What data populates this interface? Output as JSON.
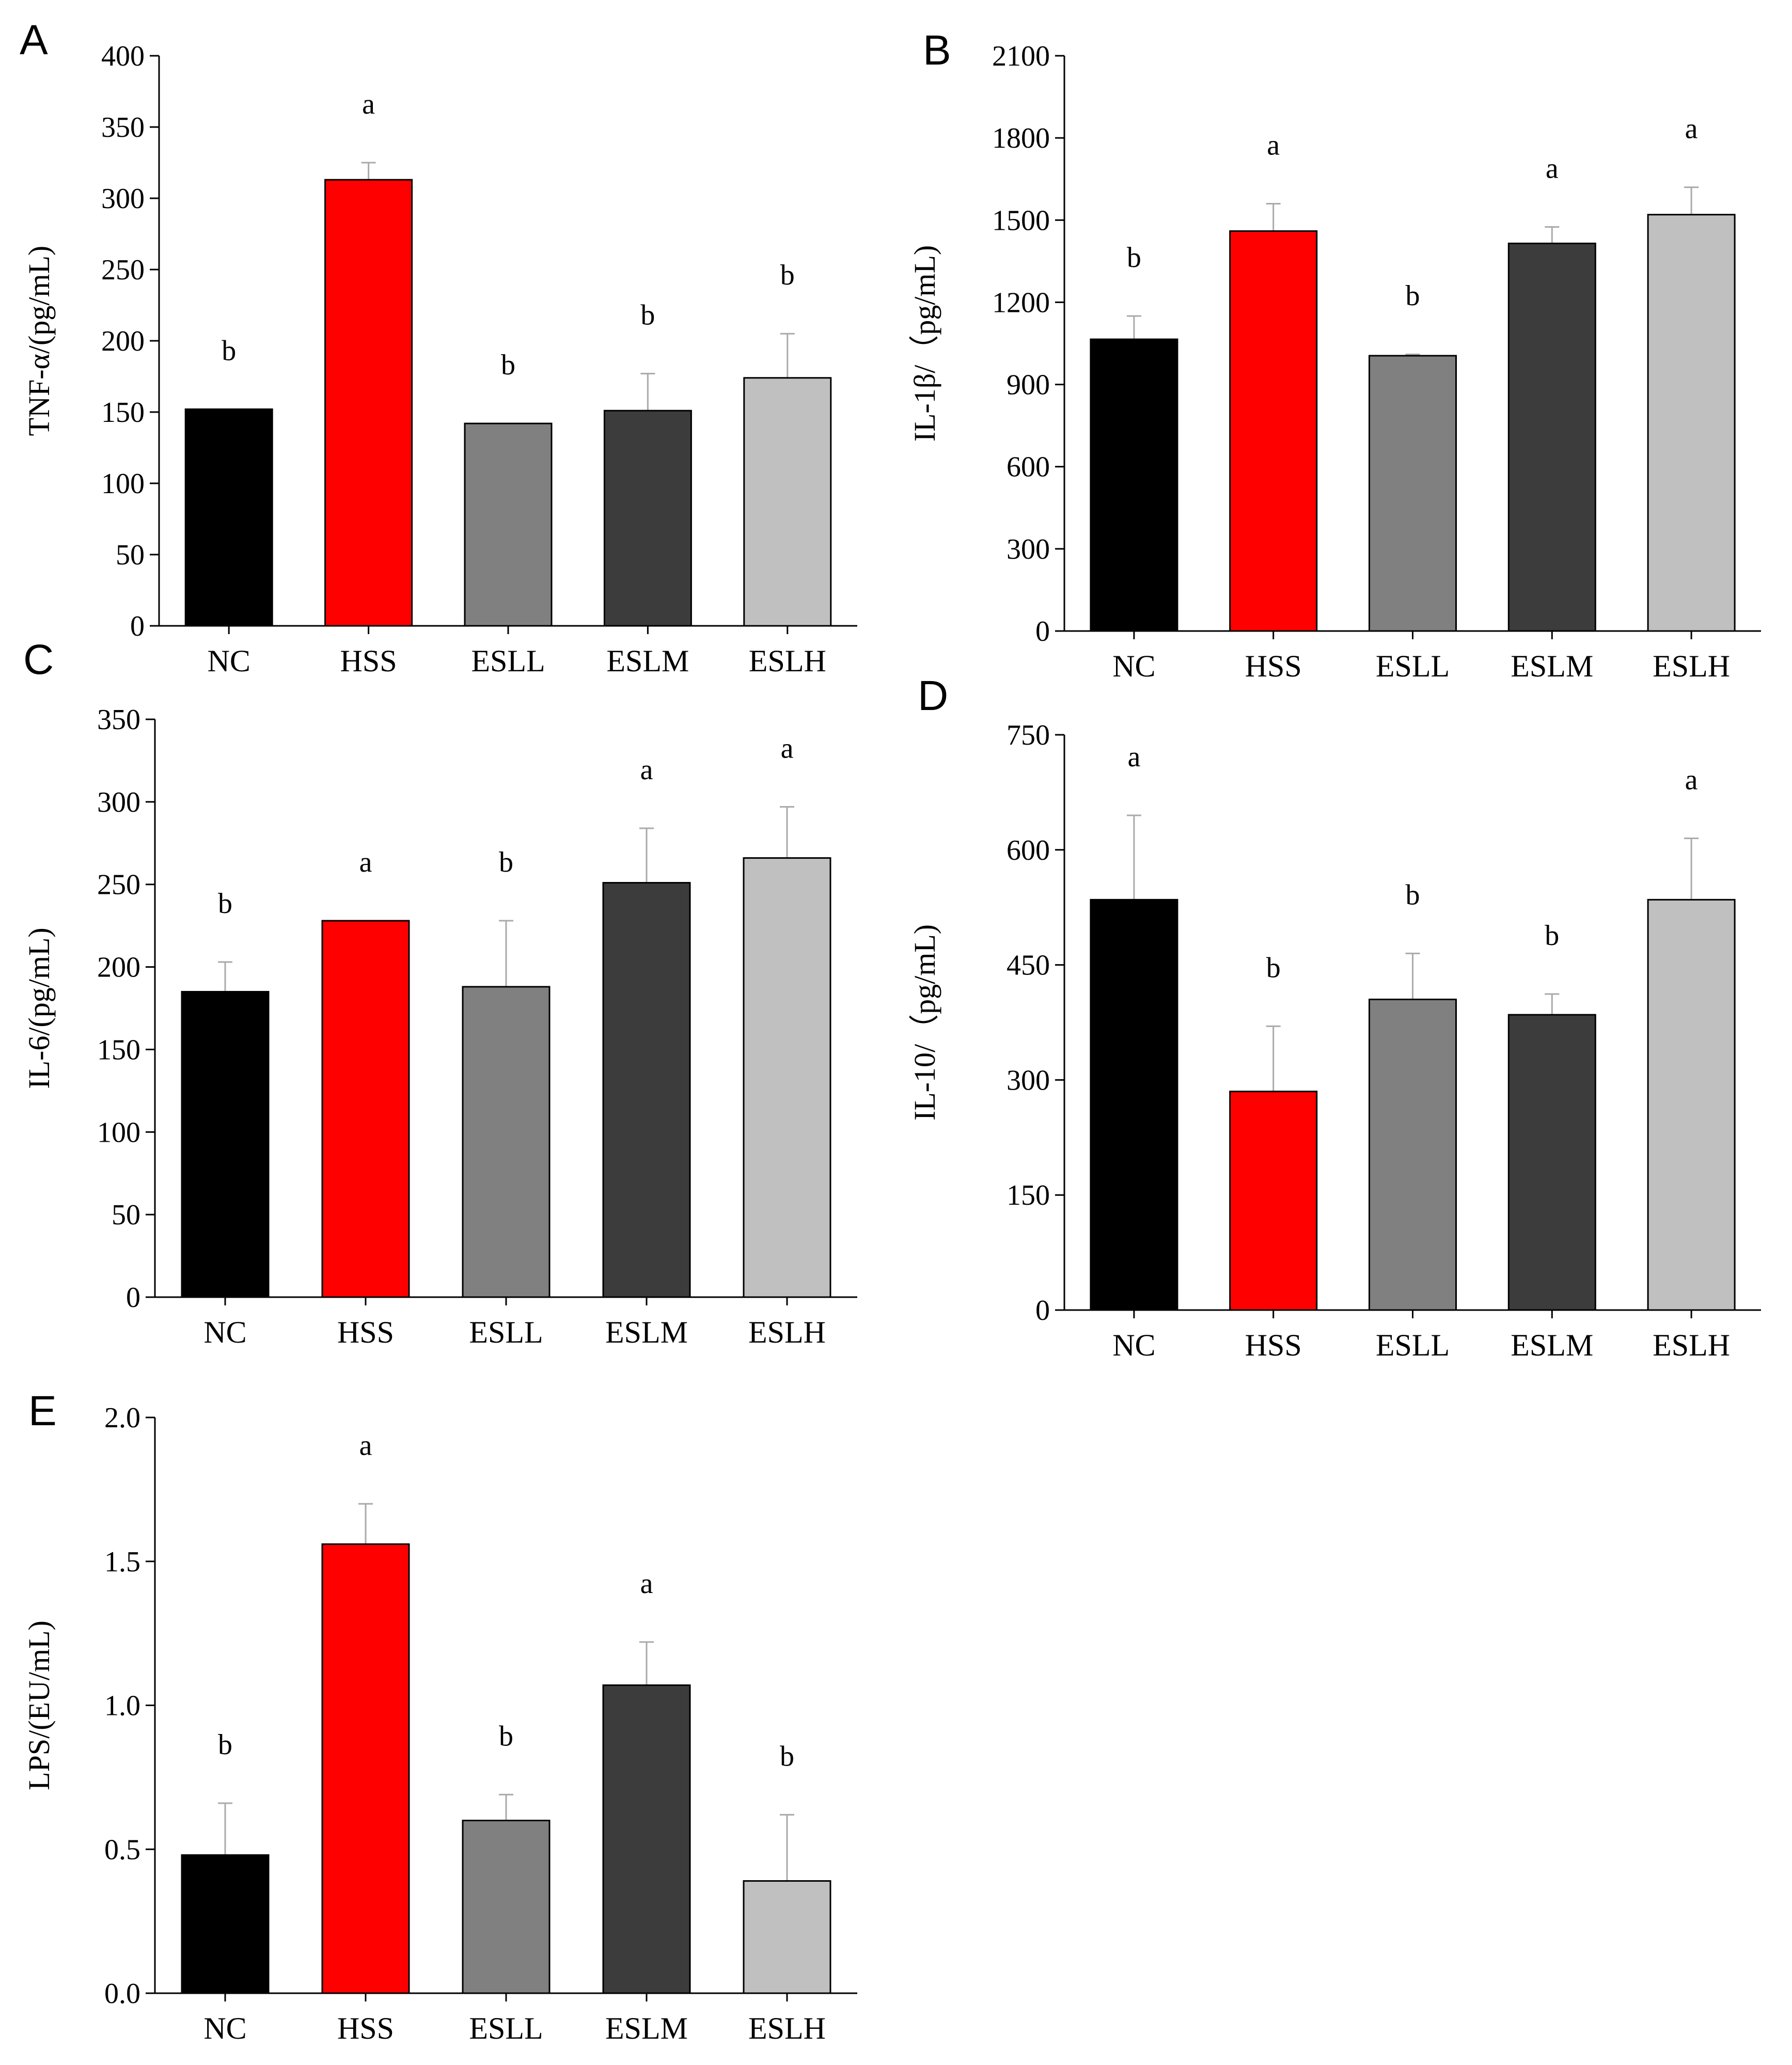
{
  "colors": {
    "NC": "#000000",
    "HSS": "#ff0000",
    "ESLL": "#808080",
    "ESLM": "#3c3c3c",
    "ESLH": "#c0c0c0",
    "error_bar": "#aaaaaa"
  },
  "chart_data": [
    {
      "type": "bar",
      "panel": "A",
      "ylabel": "TNF-α/(pg/mL)",
      "categories": [
        "NC",
        "HSS",
        "ESLL",
        "ESLM",
        "ESLH"
      ],
      "values": [
        152,
        313,
        142,
        151,
        174
      ],
      "errors": [
        null,
        12,
        null,
        26,
        31
      ],
      "significance": [
        "b",
        "a",
        "b",
        "b",
        "b"
      ],
      "ylim": [
        0,
        400
      ],
      "yticks": [
        0,
        50,
        100,
        150,
        200,
        250,
        300,
        350,
        400
      ],
      "ytick_labels": [
        "0",
        "50",
        "100",
        "150",
        "200",
        "250",
        "300",
        "350",
        "400"
      ]
    },
    {
      "type": "bar",
      "panel": "B",
      "ylabel": "IL-1β/（pg/mL)",
      "categories": [
        "NC",
        "HSS",
        "ESLL",
        "ESLM",
        "ESLH"
      ],
      "values": [
        1065,
        1460,
        1005,
        1415,
        1520
      ],
      "errors": [
        85,
        100,
        5,
        60,
        100
      ],
      "significance": [
        "b",
        "a",
        "b",
        "a",
        "a"
      ],
      "ylim": [
        0,
        2100
      ],
      "yticks": [
        0,
        300,
        600,
        900,
        1200,
        1500,
        1800,
        2100
      ],
      "ytick_labels": [
        "0",
        "300",
        "600",
        "900",
        "1200",
        "1500",
        "1800",
        "2100"
      ]
    },
    {
      "type": "bar",
      "panel": "C",
      "ylabel": "IL-6/(pg/mL)",
      "categories": [
        "NC",
        "HSS",
        "ESLL",
        "ESLM",
        "ESLH"
      ],
      "values": [
        185,
        228,
        188,
        251,
        266
      ],
      "errors": [
        18,
        null,
        40,
        33,
        31
      ],
      "significance": [
        "b",
        "a",
        "b",
        "a",
        "a"
      ],
      "ylim": [
        0,
        350
      ],
      "yticks": [
        0,
        50,
        100,
        150,
        200,
        250,
        300,
        350
      ],
      "ytick_labels": [
        "0",
        "50",
        "100",
        "150",
        "200",
        "250",
        "300",
        "350"
      ]
    },
    {
      "type": "bar",
      "panel": "D",
      "ylabel": "IL-10/（pg/mL)",
      "categories": [
        "NC",
        "HSS",
        "ESLL",
        "ESLM",
        "ESLH"
      ],
      "values": [
        535,
        285,
        405,
        385,
        535
      ],
      "errors": [
        110,
        85,
        60,
        27,
        80
      ],
      "significance": [
        "a",
        "b",
        "b",
        "b",
        "a"
      ],
      "ylim": [
        0,
        750
      ],
      "yticks": [
        0,
        150,
        300,
        450,
        600,
        750
      ],
      "ytick_labels": [
        "0",
        "150",
        "300",
        "450",
        "600",
        "750"
      ]
    },
    {
      "type": "bar",
      "panel": "E",
      "ylabel": "LPS/(EU/mL)",
      "categories": [
        "NC",
        "HSS",
        "ESLL",
        "ESLM",
        "ESLH"
      ],
      "values": [
        0.48,
        1.56,
        0.6,
        1.07,
        0.39
      ],
      "errors": [
        0.18,
        0.14,
        0.09,
        0.15,
        0.23
      ],
      "significance": [
        "b",
        "a",
        "b",
        "a",
        "b"
      ],
      "ylim": [
        0,
        2.0
      ],
      "yticks": [
        0,
        0.5,
        1.0,
        1.5,
        2.0
      ],
      "ytick_labels": [
        "0.0",
        "0.5",
        "1.0",
        "1.5",
        "2.0"
      ]
    }
  ]
}
